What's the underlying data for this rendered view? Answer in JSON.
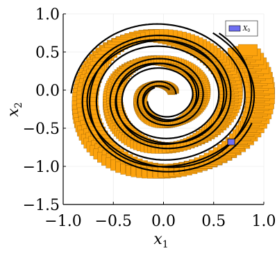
{
  "chart_data": {
    "type": "scatter",
    "title": "",
    "xlabel": "x",
    "xlabel_sub": "1",
    "ylabel": "x",
    "ylabel_sub": "2",
    "xlim": [
      -1.0,
      1.0
    ],
    "ylim": [
      -1.5,
      1.0
    ],
    "xticks": [
      -1.0,
      -0.5,
      0.0,
      0.5,
      1.0
    ],
    "xtick_labels": [
      "−1.0",
      "−0.5",
      "0.0",
      "0.5",
      "1.0"
    ],
    "yticks": [
      1.0,
      0.5,
      0.0,
      -0.5,
      -1.0,
      -1.5
    ],
    "ytick_labels": [
      "1.0",
      "0.5",
      "0.0",
      "−0.5",
      "−1.0",
      "−1.5"
    ],
    "grid": true,
    "legend": {
      "placement": "top-right",
      "entries": [
        {
          "label": "X",
          "label_sub": "0",
          "color": "#6f6ff2"
        }
      ]
    },
    "series": [
      {
        "name": "X",
        "color": "#6f6ff2",
        "kind": "box",
        "values": [
          {
            "x": [
              0.64,
              0.71
            ],
            "y": [
              -0.72,
              -0.64
            ]
          }
        ]
      },
      {
        "color": "#fca20d",
        "edge_color": "#3a2400",
        "kind": "reachable-set-spiral",
        "center": [
          0.0,
          -0.1
        ],
        "x_range": [
          -0.97,
          0.93
        ],
        "y_range": [
          -1.05,
          1.0
        ]
      },
      {
        "color": "#000000",
        "kind": "trajectory-spiral",
        "center": [
          0.0,
          -0.1
        ],
        "x_range": [
          -0.93,
          0.9
        ],
        "y_range": [
          -1.0,
          0.95
        ]
      }
    ]
  }
}
